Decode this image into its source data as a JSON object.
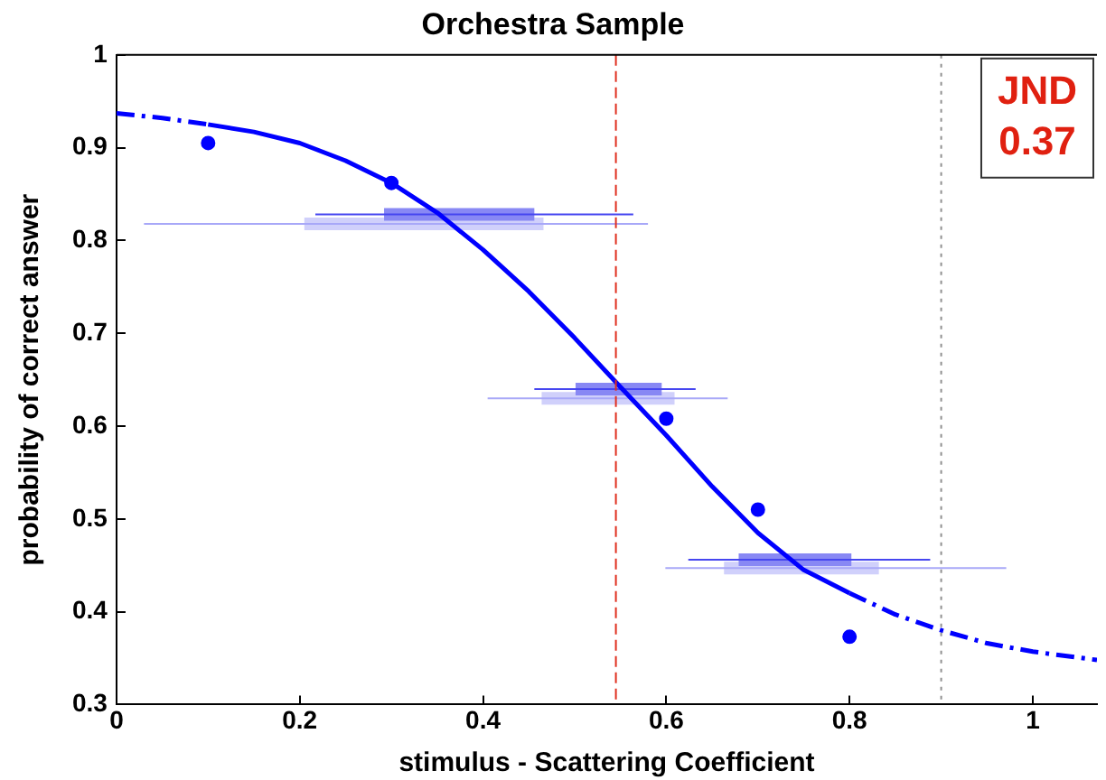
{
  "chart_data": {
    "type": "line",
    "title": "Orchestra Sample",
    "xlabel": "stimulus - Scattering Coefficient",
    "ylabel": "probability of correct answer",
    "xlim": [
      0,
      1.07
    ],
    "ylim": [
      0.3,
      1
    ],
    "xticks": [
      0,
      0.2,
      0.4,
      0.6,
      0.8,
      1
    ],
    "yticks": [
      0.3,
      0.4,
      0.5,
      0.6,
      0.7,
      0.8,
      0.9,
      1
    ],
    "grid": false,
    "legend": false,
    "series": [
      {
        "type": "line",
        "color": "#0000ff",
        "line_style": "solid",
        "marker": "none",
        "x": [
          0.1,
          0.15,
          0.2,
          0.25,
          0.3,
          0.35,
          0.4,
          0.45,
          0.5,
          0.55,
          0.6,
          0.65,
          0.7,
          0.75,
          0.8
        ],
        "values": [
          0.925,
          0.917,
          0.905,
          0.886,
          0.862,
          0.83,
          0.79,
          0.745,
          0.695,
          0.642,
          0.59,
          0.535,
          0.485,
          0.445,
          0.42
        ]
      },
      {
        "type": "line",
        "color": "#0000ff",
        "line_style": "dashed",
        "marker": "none",
        "x": [
          0,
          0.05,
          0.1
        ],
        "values": [
          0.937,
          0.932,
          0.925
        ]
      },
      {
        "type": "line",
        "color": "#0000ff",
        "line_style": "dashed",
        "marker": "none",
        "x": [
          0.8,
          0.85,
          0.9,
          0.95,
          1,
          1.07
        ],
        "values": [
          0.42,
          0.397,
          0.38,
          0.366,
          0.357,
          0.348
        ]
      },
      {
        "type": "scatter",
        "color": "#0000ff",
        "marker": "circle",
        "x": [
          0.1,
          0.3,
          0.6,
          0.7,
          0.8
        ],
        "values": [
          0.905,
          0.862,
          0.608,
          0.51,
          0.373
        ]
      },
      {
        "type": "line",
        "color": "#4646f0",
        "line_style": "solid",
        "marker": "none",
        "x": [
          0.217,
          0.564,
          null,
          0.456,
          0.632,
          null,
          0.624,
          0.888
        ],
        "values": [
          0.828,
          0.828,
          null,
          0.64,
          0.64,
          null,
          0.456,
          0.456
        ]
      },
      {
        "type": "line",
        "color": "#a8a8f8",
        "line_style": "solid",
        "marker": "none",
        "x": [
          0.03,
          0.58,
          null,
          0.405,
          0.667,
          null,
          0.599,
          0.971
        ],
        "values": [
          0.818,
          0.818,
          null,
          0.63,
          0.63,
          null,
          0.447,
          0.447
        ]
      },
      {
        "type": "line",
        "color": "#8888f4",
        "line_style": "solid",
        "marker": "none",
        "x": [
          0.292,
          0.456,
          null,
          0.501,
          0.595,
          null,
          0.679,
          0.802
        ],
        "values": [
          0.828,
          0.828,
          null,
          0.64,
          0.64,
          null,
          0.456,
          0.456
        ]
      },
      {
        "type": "line",
        "color": "#d0d0fb",
        "line_style": "solid",
        "marker": "none",
        "x": [
          0.205,
          0.466,
          null,
          0.464,
          0.609,
          null,
          0.663,
          0.832
        ],
        "values": [
          0.818,
          0.818,
          null,
          0.63,
          0.63,
          null,
          0.447,
          0.447
        ]
      }
    ],
    "ref_lines": [
      {
        "axis": "x",
        "value": 0.545,
        "color": "#e03020",
        "line_style": "dashed"
      },
      {
        "axis": "x",
        "value": 0.9,
        "color": "#909090",
        "line_style": "dotted"
      }
    ],
    "annotations": [
      "JND",
      "0.37"
    ]
  }
}
